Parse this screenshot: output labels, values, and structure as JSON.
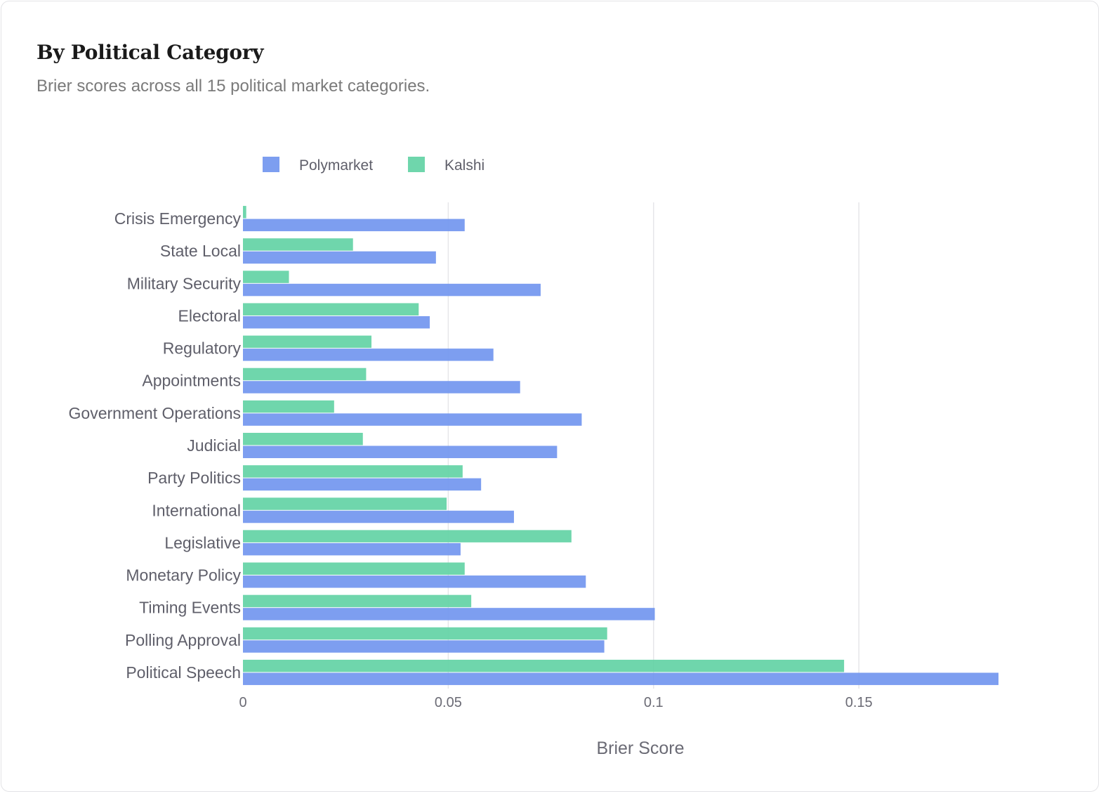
{
  "card": {
    "title": "By Political Category",
    "subtitle": "Brier scores across all 15 political market categories."
  },
  "chart_data": {
    "type": "bar",
    "orientation": "horizontal",
    "categories": [
      "Crisis Emergency",
      "State Local",
      "Military Security",
      "Electoral",
      "Regulatory",
      "Appointments",
      "Government Operations",
      "Judicial",
      "Party Politics",
      "International",
      "Legislative",
      "Monetary Policy",
      "Timing Events",
      "Polling Approval",
      "Political Speech"
    ],
    "series": [
      {
        "name": "Polymarket",
        "color": "#6f93ee",
        "values": [
          0.054,
          0.047,
          0.0725,
          0.0455,
          0.061,
          0.0675,
          0.0825,
          0.0765,
          0.058,
          0.066,
          0.053,
          0.0835,
          0.1003,
          0.088,
          0.184
        ]
      },
      {
        "name": "Kalshi",
        "color": "#5fd1a3",
        "values": [
          0.0008,
          0.0268,
          0.0112,
          0.0428,
          0.0313,
          0.03,
          0.0222,
          0.0292,
          0.0535,
          0.0496,
          0.08,
          0.054,
          0.0556,
          0.0887,
          0.1464
        ]
      }
    ],
    "xlabel": "Brier Score",
    "ylabel": "",
    "xlim": [
      0,
      0.184
    ],
    "xticks": [
      {
        "value": 0,
        "label": "0"
      },
      {
        "value": 0.05,
        "label": "0.05"
      },
      {
        "value": 0.1,
        "label": "0.1"
      },
      {
        "value": 0.15,
        "label": "0.15"
      }
    ],
    "grid": "vertical",
    "legend_position": "top-left"
  }
}
